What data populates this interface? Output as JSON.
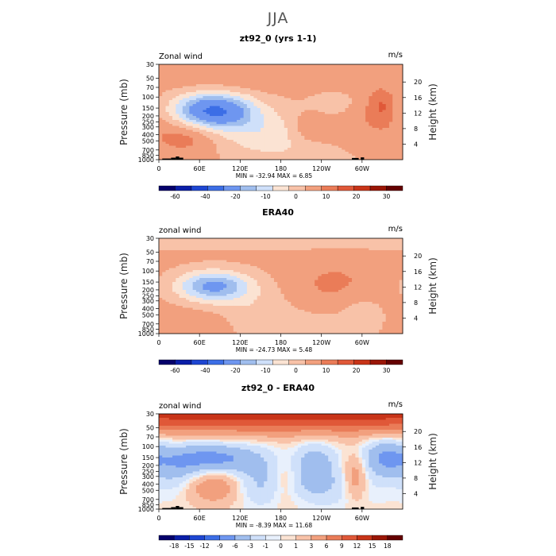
{
  "page_title": "JJA",
  "chart_data": [
    {
      "type": "heatmap",
      "title": "zt92_0 (yrs 1-1)",
      "field_label": "Zonal wind",
      "units": "m/s",
      "ylabel": "Pressure (mb)",
      "ylabel_right": "Height (km)",
      "x_ticks": [
        "0",
        "60E",
        "120E",
        "180",
        "120W",
        "60W"
      ],
      "x_tick_values": [
        0,
        60,
        120,
        180,
        240,
        300
      ],
      "xlim": [
        0,
        360
      ],
      "y_ticks": [
        "30",
        "50",
        "70",
        "100",
        "150",
        "200",
        "250",
        "300",
        "400",
        "500",
        "700",
        "850",
        "1000"
      ],
      "y_tick_values": [
        30,
        50,
        70,
        100,
        150,
        200,
        250,
        300,
        400,
        500,
        700,
        850,
        1000
      ],
      "ylim": [
        30,
        1000
      ],
      "height_ticks": [
        "4",
        "8",
        "12",
        "16",
        "20"
      ],
      "height_tick_values": [
        4,
        8,
        12,
        16,
        20
      ],
      "stats": "MIN = -32.94   MAX =    6.85",
      "colorbar_labels": [
        "-60",
        "-40",
        "-20",
        "-10",
        "0",
        "10",
        "20",
        "30"
      ],
      "colorbar_colors": [
        "#05006b",
        "#0a1ea8",
        "#1e46d2",
        "#3c6ee6",
        "#6e96f0",
        "#a0beee",
        "#cfe0fa",
        "#fbe3d3",
        "#f8c2a8",
        "#f2a07e",
        "#ea7c58",
        "#e05838",
        "#c83418",
        "#9a1606",
        "#650000"
      ],
      "field": {
        "base": 0.2,
        "blobs": [
          {
            "lon": 180,
            "p": 58,
            "amp": 0.5,
            "slon": 120,
            "slp": 0.12
          },
          {
            "lon": 80,
            "p": 165,
            "amp": -5.4,
            "slon": 40,
            "slp": 0.22
          },
          {
            "lon": 40,
            "p": 420,
            "amp": 1.2,
            "slon": 35,
            "slp": 0.25
          },
          {
            "lon": 150,
            "p": 350,
            "amp": -1.5,
            "slon": 55,
            "slp": 0.3
          },
          {
            "lon": 222,
            "p": 320,
            "amp": 1.0,
            "slon": 20,
            "slp": 0.2
          },
          {
            "lon": 290,
            "p": 330,
            "amp": 0.7,
            "slon": 45,
            "slp": 0.5
          },
          {
            "lon": 330,
            "p": 140,
            "amp": 1.4,
            "slon": 15,
            "slp": 0.2
          },
          {
            "lon": 262,
            "p": 130,
            "amp": -0.8,
            "slon": 30,
            "slp": 0.25
          },
          {
            "lon": 250,
            "p": 800,
            "amp": -0.7,
            "slon": 80,
            "slp": 0.25
          }
        ],
        "levels": [
          -60,
          -50,
          -40,
          -30,
          -20,
          -15,
          -10,
          -5,
          0,
          5,
          10,
          15,
          20,
          25,
          30
        ],
        "colors": [
          "#05006b",
          "#0a1ea8",
          "#1e46d2",
          "#3c6ee6",
          "#6e96f0",
          "#a0beee",
          "#cfe0fa",
          "#fbe3d3",
          "#f8c2a8",
          "#f2a07e",
          "#ea7c58",
          "#e05838",
          "#c83418",
          "#9a1606",
          "#650000"
        ],
        "scale": 6
      },
      "topography": true
    },
    {
      "type": "heatmap",
      "title": "ERA40",
      "field_label": "zonal wind",
      "units": "m/s",
      "ylabel": "Pressure (mb)",
      "ylabel_right": "Height (km)",
      "x_ticks": [
        "0",
        "60E",
        "120E",
        "180",
        "120W",
        "60W"
      ],
      "x_tick_values": [
        0,
        60,
        120,
        180,
        240,
        300
      ],
      "xlim": [
        0,
        360
      ],
      "y_ticks": [
        "30",
        "50",
        "70",
        "100",
        "150",
        "200",
        "250",
        "300",
        "400",
        "500",
        "700",
        "850",
        "1000"
      ],
      "y_tick_values": [
        30,
        50,
        70,
        100,
        150,
        200,
        250,
        300,
        400,
        500,
        700,
        850,
        1000
      ],
      "ylim": [
        30,
        1000
      ],
      "height_ticks": [
        "4",
        "8",
        "12",
        "16",
        "20"
      ],
      "height_tick_values": [
        4,
        8,
        12,
        16,
        20
      ],
      "stats": "MIN = -24.73   MAX =    5.48",
      "colorbar_labels": [
        "-60",
        "-40",
        "-20",
        "-10",
        "0",
        "10",
        "20",
        "30"
      ],
      "colorbar_colors": [
        "#05006b",
        "#0a1ea8",
        "#1e46d2",
        "#3c6ee6",
        "#6e96f0",
        "#a0beee",
        "#cfe0fa",
        "#fbe3d3",
        "#f8c2a8",
        "#f2a07e",
        "#ea7c58",
        "#e05838",
        "#c83418",
        "#9a1606",
        "#650000"
      ],
      "field": {
        "base": 0.3,
        "blobs": [
          {
            "lon": 180,
            "p": 33,
            "amp": -1.2,
            "slon": 400,
            "slp": 0.1
          },
          {
            "lon": 80,
            "p": 175,
            "amp": -4.6,
            "slon": 38,
            "slp": 0.2
          },
          {
            "lon": 140,
            "p": 420,
            "amp": -0.9,
            "slon": 40,
            "slp": 0.35
          },
          {
            "lon": 260,
            "p": 160,
            "amp": 0.9,
            "slon": 45,
            "slp": 0.3
          },
          {
            "lon": 300,
            "p": 500,
            "amp": -0.8,
            "slon": 25,
            "slp": 0.3
          },
          {
            "lon": 60,
            "p": 800,
            "amp": 0.8,
            "slon": 40,
            "slp": 0.2
          },
          {
            "lon": 200,
            "p": 760,
            "amp": -0.8,
            "slon": 60,
            "slp": 0.2
          }
        ],
        "levels": [
          -60,
          -50,
          -40,
          -30,
          -20,
          -15,
          -10,
          -5,
          0,
          5,
          10,
          15,
          20,
          25,
          30
        ],
        "colors": [
          "#05006b",
          "#0a1ea8",
          "#1e46d2",
          "#3c6ee6",
          "#6e96f0",
          "#a0beee",
          "#cfe0fa",
          "#fbe3d3",
          "#f8c2a8",
          "#f2a07e",
          "#ea7c58",
          "#e05838",
          "#c83418",
          "#9a1606",
          "#650000"
        ],
        "scale": 5
      },
      "topography": false
    },
    {
      "type": "heatmap",
      "title": "zt92_0 - ERA40",
      "field_label": "zonal wind",
      "units": "m/s",
      "ylabel": "Pressure (mb)",
      "ylabel_right": "Height (km)",
      "x_ticks": [
        "0",
        "60E",
        "120E",
        "180",
        "120W",
        "60W"
      ],
      "x_tick_values": [
        0,
        60,
        120,
        180,
        240,
        300
      ],
      "xlim": [
        0,
        360
      ],
      "y_ticks": [
        "30",
        "50",
        "70",
        "100",
        "150",
        "200",
        "250",
        "300",
        "400",
        "500",
        "700",
        "850",
        "1000"
      ],
      "y_tick_values": [
        30,
        50,
        70,
        100,
        150,
        200,
        250,
        300,
        400,
        500,
        700,
        850,
        1000
      ],
      "ylim": [
        30,
        1000
      ],
      "height_ticks": [
        "4",
        "8",
        "12",
        "16",
        "20"
      ],
      "height_tick_values": [
        4,
        8,
        12,
        16,
        20
      ],
      "stats": "MIN =  -8.39   MAX =   11.68",
      "colorbar_labels": [
        "-18",
        "-15",
        "-12",
        "-9",
        "-6",
        "-3",
        "-1",
        "0",
        "1",
        "3",
        "6",
        "9",
        "12",
        "15",
        "18"
      ],
      "colorbar_colors": [
        "#05006b",
        "#0a1ea8",
        "#1e46d2",
        "#3c6ee6",
        "#6e96f0",
        "#a0beee",
        "#cfe0fa",
        "#e8f0fc",
        "#fbe3d3",
        "#f8c2a8",
        "#f2a07e",
        "#ea7c58",
        "#e05838",
        "#c83418",
        "#9a1606",
        "#650000"
      ],
      "field": {
        "base": 0.0,
        "blobs": [
          {
            "lon": 180,
            "p": 30,
            "amp": 8.5,
            "slon": 500,
            "slp": 0.25
          },
          {
            "lon": 80,
            "p": 155,
            "amp": -4.5,
            "slon": 45,
            "slp": 0.2
          },
          {
            "lon": 230,
            "p": 200,
            "amp": -3.0,
            "slon": 20,
            "slp": 0.3
          },
          {
            "lon": 335,
            "p": 150,
            "amp": -4.0,
            "slon": 25,
            "slp": 0.25
          },
          {
            "lon": 80,
            "p": 420,
            "amp": 3.6,
            "slon": 30,
            "slp": 0.22
          },
          {
            "lon": 290,
            "p": 300,
            "amp": 3.4,
            "slon": 12,
            "slp": 0.3
          },
          {
            "lon": 185,
            "p": 350,
            "amp": 1.8,
            "slon": 15,
            "slp": 0.3
          },
          {
            "lon": 150,
            "p": 400,
            "amp": -2.2,
            "slon": 30,
            "slp": 0.35
          },
          {
            "lon": 250,
            "p": 500,
            "amp": -1.5,
            "slon": 45,
            "slp": 0.3
          },
          {
            "lon": 30,
            "p": 250,
            "amp": -2.0,
            "slon": 25,
            "slp": 0.3
          },
          {
            "lon": 180,
            "p": 900,
            "amp": 0.6,
            "slon": 120,
            "slp": 0.2
          }
        ],
        "levels": [
          -18,
          -15,
          -12,
          -9,
          -6,
          -3,
          -1,
          0,
          1,
          3,
          6,
          9,
          12,
          15,
          18
        ],
        "colors": [
          "#05006b",
          "#0a1ea8",
          "#1e46d2",
          "#3c6ee6",
          "#6e96f0",
          "#a0beee",
          "#cfe0fa",
          "#e8f0fc",
          "#fbe3d3",
          "#f8c2a8",
          "#f2a07e",
          "#ea7c58",
          "#e05838",
          "#c83418",
          "#9a1606",
          "#650000"
        ],
        "scale": 1.6
      },
      "topography": true
    }
  ]
}
